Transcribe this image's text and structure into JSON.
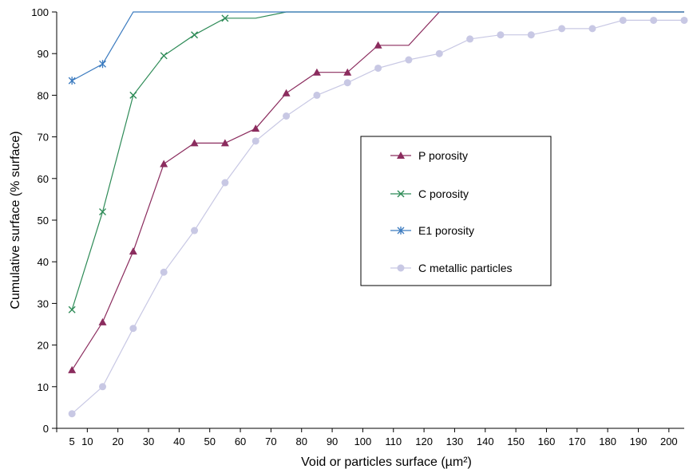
{
  "chart_data": {
    "type": "line",
    "xlabel": "Void or particles surface (µm²)",
    "ylabel": "Cumulative surface (% surface)",
    "xlim": [
      0,
      205
    ],
    "ylim": [
      0,
      100
    ],
    "x_ticks": [
      5,
      10,
      20,
      30,
      40,
      50,
      60,
      70,
      80,
      90,
      100,
      110,
      120,
      130,
      140,
      150,
      160,
      170,
      180,
      190,
      200
    ],
    "y_ticks": [
      0,
      10,
      20,
      30,
      40,
      50,
      60,
      70,
      80,
      90,
      100
    ],
    "grid": false,
    "legend_position": "right",
    "series": [
      {
        "name": "P porosity",
        "color": "#8b2c5e",
        "marker": "triangle",
        "x": [
          5,
          15,
          25,
          35,
          45,
          55,
          65,
          75,
          85,
          95,
          105,
          115,
          125,
          135,
          145,
          155,
          165,
          175,
          185,
          195,
          205
        ],
        "y": [
          14,
          25.5,
          42.5,
          63.5,
          68.5,
          68.5,
          72,
          80.5,
          85.5,
          85.5,
          92,
          92,
          100,
          100,
          100,
          100,
          100,
          100,
          100,
          100,
          100
        ],
        "markers_shown": 11
      },
      {
        "name": "C porosity",
        "color": "#2e8b57",
        "marker": "x",
        "x": [
          5,
          15,
          25,
          35,
          45,
          55,
          65,
          75,
          85,
          95,
          105,
          115,
          125,
          135,
          145,
          155,
          165,
          175,
          185,
          195,
          205
        ],
        "y": [
          28.5,
          52,
          80,
          89.5,
          94.5,
          98.5,
          98.5,
          100,
          100,
          100,
          100,
          100,
          100,
          100,
          100,
          100,
          100,
          100,
          100,
          100,
          100
        ],
        "markers_shown": 6
      },
      {
        "name": "E1 porosity",
        "color": "#3a7abf",
        "marker": "star",
        "x": [
          5,
          15,
          25,
          35,
          45,
          55,
          65,
          75,
          85,
          95,
          105,
          115,
          125,
          135,
          145,
          155,
          165,
          175,
          185,
          195,
          205
        ],
        "y": [
          83.5,
          87.5,
          100,
          100,
          100,
          100,
          100,
          100,
          100,
          100,
          100,
          100,
          100,
          100,
          100,
          100,
          100,
          100,
          100,
          100,
          100
        ],
        "markers_shown": 2
      },
      {
        "name": "C metallic particles",
        "color": "#c8c8e4",
        "marker": "circle",
        "x": [
          5,
          15,
          25,
          35,
          45,
          55,
          65,
          75,
          85,
          95,
          105,
          115,
          125,
          135,
          145,
          155,
          165,
          175,
          185,
          195,
          205
        ],
        "y": [
          3.5,
          10,
          24,
          37.5,
          47.5,
          59,
          69,
          75,
          80,
          83,
          86.5,
          88.5,
          90,
          93.5,
          94.5,
          94.5,
          96,
          96,
          98,
          98,
          98
        ],
        "markers_shown": 21
      }
    ]
  }
}
